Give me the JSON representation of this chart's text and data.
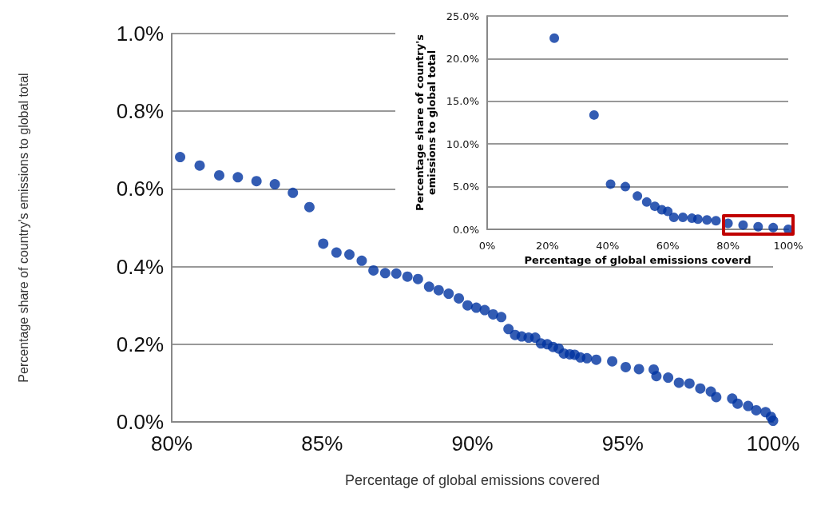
{
  "chart_data": [
    {
      "type": "scatter",
      "xlabel": "Percentage of global emissions covered",
      "ylabel": "Percentage share of country's emissions to global total",
      "marker": "circle",
      "grid": "y",
      "xlim": [
        80,
        100
      ],
      "xticks": [
        {
          "value": 80,
          "label": "80%"
        },
        {
          "value": 85,
          "label": "85%"
        },
        {
          "value": 90,
          "label": "90%"
        },
        {
          "value": 95,
          "label": "95%"
        },
        {
          "value": 100,
          "label": "100%"
        }
      ],
      "ylim": [
        0,
        1
      ],
      "yticks": [
        {
          "value": 0,
          "label": "0.0%"
        },
        {
          "value": 0.2,
          "label": "0.2%"
        },
        {
          "value": 0.4,
          "label": "0.4%"
        },
        {
          "value": 0.6,
          "label": "0.6%"
        },
        {
          "value": 0.8,
          "label": "0.8%"
        },
        {
          "value": 1,
          "label": "1.0%"
        }
      ],
      "series": [
        {
          "color": "#0033a0",
          "x": [
            80.28,
            80.93,
            81.58,
            82.2,
            82.82,
            83.43,
            84.03,
            84.58,
            85.04,
            85.48,
            85.91,
            86.32,
            86.71,
            87.1,
            87.47,
            87.84,
            88.19,
            88.56,
            88.88,
            89.21,
            89.55,
            89.84,
            90.13,
            90.41,
            90.69,
            90.96,
            91.2,
            91.42,
            91.64,
            91.87,
            92.09,
            92.28,
            92.49,
            92.68,
            92.87,
            93.04,
            93.24,
            93.4,
            93.59,
            93.81,
            94.12,
            94.65,
            95.1,
            95.54,
            96.03,
            96.12,
            96.51,
            96.87,
            97.22,
            97.58,
            97.93,
            98.11,
            98.64,
            98.82,
            99.17,
            99.44,
            99.75,
            99.93,
            100
          ],
          "values": [
            0.682,
            0.66,
            0.635,
            0.63,
            0.62,
            0.612,
            0.59,
            0.553,
            0.459,
            0.436,
            0.431,
            0.415,
            0.39,
            0.383,
            0.382,
            0.374,
            0.368,
            0.348,
            0.339,
            0.33,
            0.318,
            0.3,
            0.294,
            0.288,
            0.277,
            0.27,
            0.239,
            0.224,
            0.22,
            0.217,
            0.217,
            0.202,
            0.2,
            0.193,
            0.189,
            0.176,
            0.174,
            0.173,
            0.166,
            0.164,
            0.16,
            0.156,
            0.141,
            0.136,
            0.135,
            0.118,
            0.114,
            0.101,
            0.099,
            0.086,
            0.078,
            0.064,
            0.06,
            0.047,
            0.041,
            0.03,
            0.025,
            0.013,
            0.003
          ]
        }
      ]
    },
    {
      "type": "scatter",
      "xlabel": "Percentage of global emissions coverd",
      "ylabel": "Percentage share of country's emissions to global total",
      "marker": "circle",
      "grid": "y",
      "xlim": [
        0,
        100
      ],
      "xticks": [
        {
          "value": 0,
          "label": "0%"
        },
        {
          "value": 20,
          "label": "20%"
        },
        {
          "value": 40,
          "label": "40%"
        },
        {
          "value": 60,
          "label": "60%"
        },
        {
          "value": 80,
          "label": "80%"
        },
        {
          "value": 100,
          "label": "100%"
        }
      ],
      "ylim": [
        0,
        25
      ],
      "yticks": [
        {
          "value": 0,
          "label": "0.0%"
        },
        {
          "value": 5,
          "label": "5.0%"
        },
        {
          "value": 10,
          "label": "10.0%"
        },
        {
          "value": 15,
          "label": "15.0%"
        },
        {
          "value": 20,
          "label": "20.0%"
        },
        {
          "value": 25,
          "label": "25.0%"
        }
      ],
      "series": [
        {
          "color": "#0033a0",
          "x": [
            22.3,
            35.5,
            41,
            45.9,
            49.9,
            53,
            55.7,
            58,
            60,
            62,
            65,
            68,
            70,
            73,
            76,
            80,
            85,
            90,
            95,
            100
          ],
          "values": [
            22.4,
            13.4,
            5.3,
            5,
            3.9,
            3.2,
            2.7,
            2.3,
            2.1,
            1.4,
            1.4,
            1.3,
            1.2,
            1.1,
            1,
            0.7,
            0.5,
            0.3,
            0.2,
            0
          ]
        }
      ]
    }
  ]
}
